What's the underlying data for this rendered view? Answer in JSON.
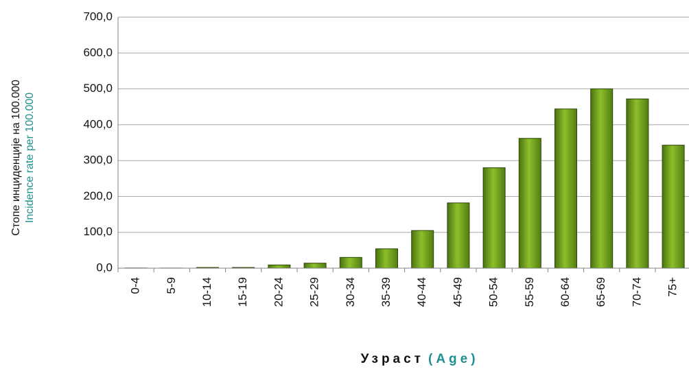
{
  "chart_data": {
    "type": "bar",
    "ylabel": [
      "Стопе инциденције на 100.000",
      "Incidence rate per 100.000"
    ],
    "xlabel": [
      "Узраст",
      "(Age)"
    ],
    "categories": [
      "0-4",
      "5-9",
      "10-14",
      "15-19",
      "20-24",
      "25-29",
      "30-34",
      "35-39",
      "40-44",
      "45-49",
      "50-54",
      "55-59",
      "60-64",
      "65-69",
      "70-74",
      "75+"
    ],
    "values": [
      0.5,
      0.3,
      2,
      2,
      9,
      14,
      30,
      54,
      105,
      182,
      280,
      362,
      444,
      500,
      472,
      343
    ],
    "color": "#8cbf2a",
    "ylim": [
      0,
      700
    ],
    "yticks": [
      {
        "value": 0,
        "label": "0,0"
      },
      {
        "value": 100,
        "label": "100,0"
      },
      {
        "value": 200,
        "label": "200,0"
      },
      {
        "value": 300,
        "label": "300,0"
      },
      {
        "value": 400,
        "label": "400,0"
      },
      {
        "value": 500,
        "label": "500,0"
      },
      {
        "value": 600,
        "label": "600,0"
      },
      {
        "value": 700,
        "label": "700,0"
      }
    ],
    "grid": true
  }
}
